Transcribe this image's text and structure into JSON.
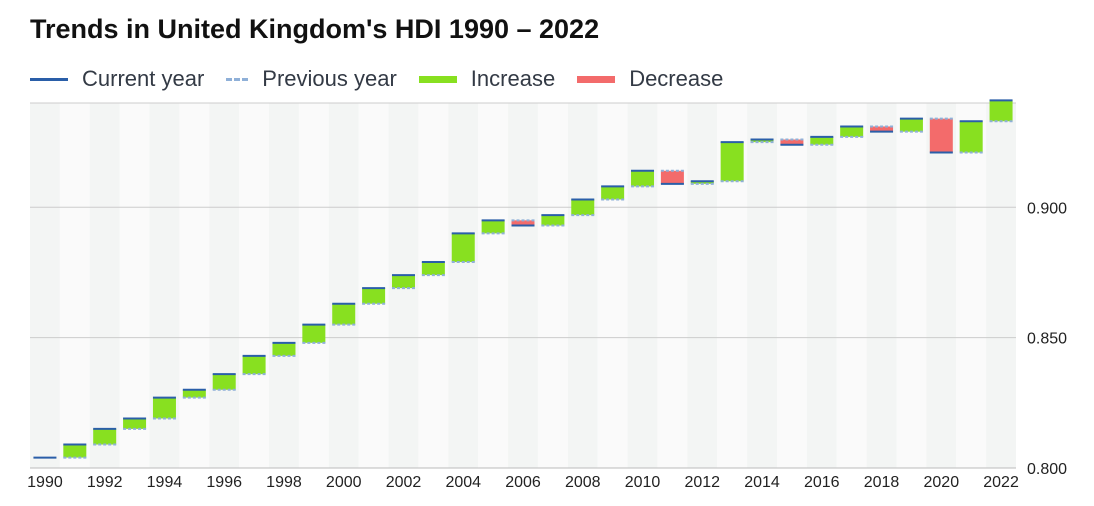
{
  "chart_data": {
    "type": "bar",
    "title": "Trends in United Kingdom's HDI 1990 – 2022",
    "legend": [
      {
        "key": "current",
        "label": "Current year",
        "color": "#2a5ea8"
      },
      {
        "key": "previous",
        "label": "Previous year",
        "color": "#8fb0d8"
      },
      {
        "key": "increase",
        "label": "Increase",
        "color": "#88e020"
      },
      {
        "key": "decrease",
        "label": "Decrease",
        "color": "#f36b6b"
      }
    ],
    "legend_position": "top-left",
    "years": [
      1990,
      1991,
      1992,
      1993,
      1994,
      1995,
      1996,
      1997,
      1998,
      1999,
      2000,
      2001,
      2002,
      2003,
      2004,
      2005,
      2006,
      2007,
      2008,
      2009,
      2010,
      2011,
      2012,
      2013,
      2014,
      2015,
      2016,
      2017,
      2018,
      2019,
      2020,
      2021,
      2022
    ],
    "values": [
      0.804,
      0.809,
      0.815,
      0.819,
      0.827,
      0.83,
      0.836,
      0.843,
      0.848,
      0.855,
      0.863,
      0.869,
      0.874,
      0.879,
      0.89,
      0.895,
      0.893,
      0.897,
      0.903,
      0.908,
      0.914,
      0.909,
      0.91,
      0.925,
      0.926,
      0.924,
      0.927,
      0.931,
      0.929,
      0.934,
      0.921,
      0.933,
      0.941
    ],
    "x_tick_labels": [
      "1990",
      "1992",
      "1994",
      "1996",
      "1998",
      "2000",
      "2002",
      "2004",
      "2006",
      "2008",
      "2010",
      "2012",
      "2014",
      "2016",
      "2018",
      "2020",
      "2022"
    ],
    "y_ticks": [
      0.8,
      0.85,
      0.9
    ],
    "y_tick_labels": [
      "0.800",
      "0.850",
      "0.900"
    ],
    "ylim": [
      0.8,
      0.94
    ],
    "y_axis_position": "right",
    "grid": true,
    "colors": {
      "current": "#2a5ea8",
      "previous": "#8fb0d8",
      "increase": "#88e020",
      "decrease": "#f36b6b",
      "band_dark": "#f3f5f4",
      "band_light": "#fafafa",
      "grid": "#cccccc"
    }
  }
}
